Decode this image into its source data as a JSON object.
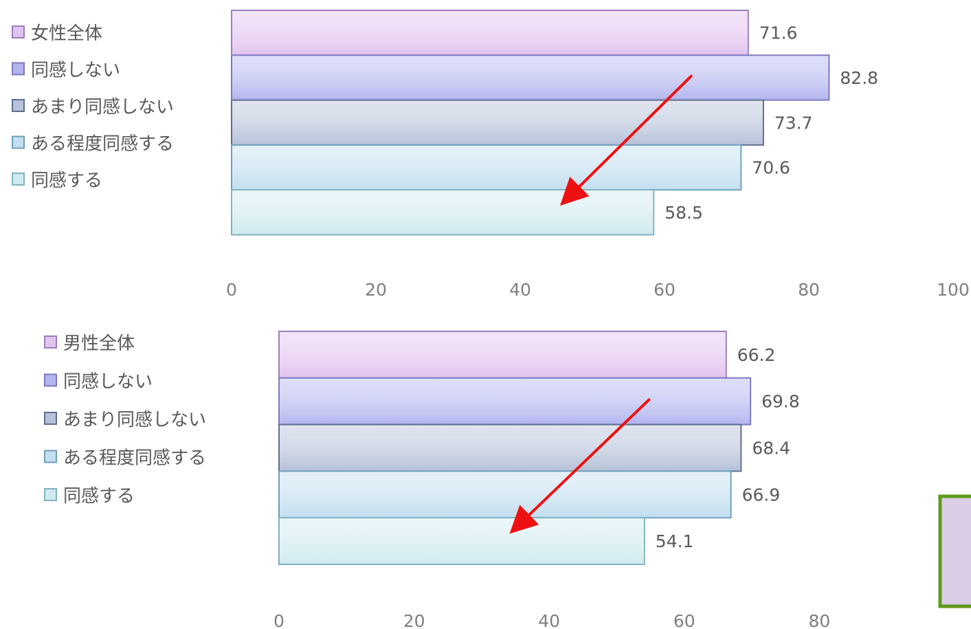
{
  "chart_data": [
    {
      "type": "bar",
      "orientation": "horizontal",
      "legend": "left",
      "xlim": [
        0,
        100
      ],
      "x_ticks": [
        "0",
        "20",
        "40",
        "60",
        "80",
        "100"
      ],
      "categories": [
        "女性全体",
        "同感しない",
        "あまり同感しない",
        "ある程度同感する",
        "同感する"
      ],
      "values": [
        71.6,
        82.8,
        73.7,
        70.6,
        58.5
      ],
      "value_labels": [
        "71.6",
        "82.8",
        "73.7",
        "70.6",
        "58.5"
      ],
      "colors": [
        "#e2c3f0",
        "#b3b6ef",
        "#b6c2d9",
        "#c2def0",
        "#cfeaf0"
      ],
      "border_colors": [
        "#9a7fbc",
        "#7e78c2",
        "#5e6d8e",
        "#6d9fba",
        "#7fb3be"
      ],
      "arrow_color": "#ee1111"
    },
    {
      "type": "bar",
      "orientation": "horizontal",
      "legend": "left",
      "xlim": [
        0,
        80
      ],
      "x_ticks": [
        "0",
        "20",
        "40",
        "60",
        "80"
      ],
      "categories": [
        "男性全体",
        "同感しない",
        "あまり同感しない",
        "ある程度同感する",
        "同感する"
      ],
      "values": [
        66.2,
        69.8,
        68.4,
        66.9,
        54.1
      ],
      "value_labels": [
        "66.2",
        "69.8",
        "68.4",
        "66.9",
        "54.1"
      ],
      "colors": [
        "#e2c3f0",
        "#b3b6ef",
        "#b6c2d9",
        "#c2def0",
        "#cfeaf0"
      ],
      "border_colors": [
        "#9a7fbc",
        "#7e78c2",
        "#5e6d8e",
        "#6d9fba",
        "#7fb3be"
      ],
      "arrow_color": "#ee1111"
    }
  ]
}
